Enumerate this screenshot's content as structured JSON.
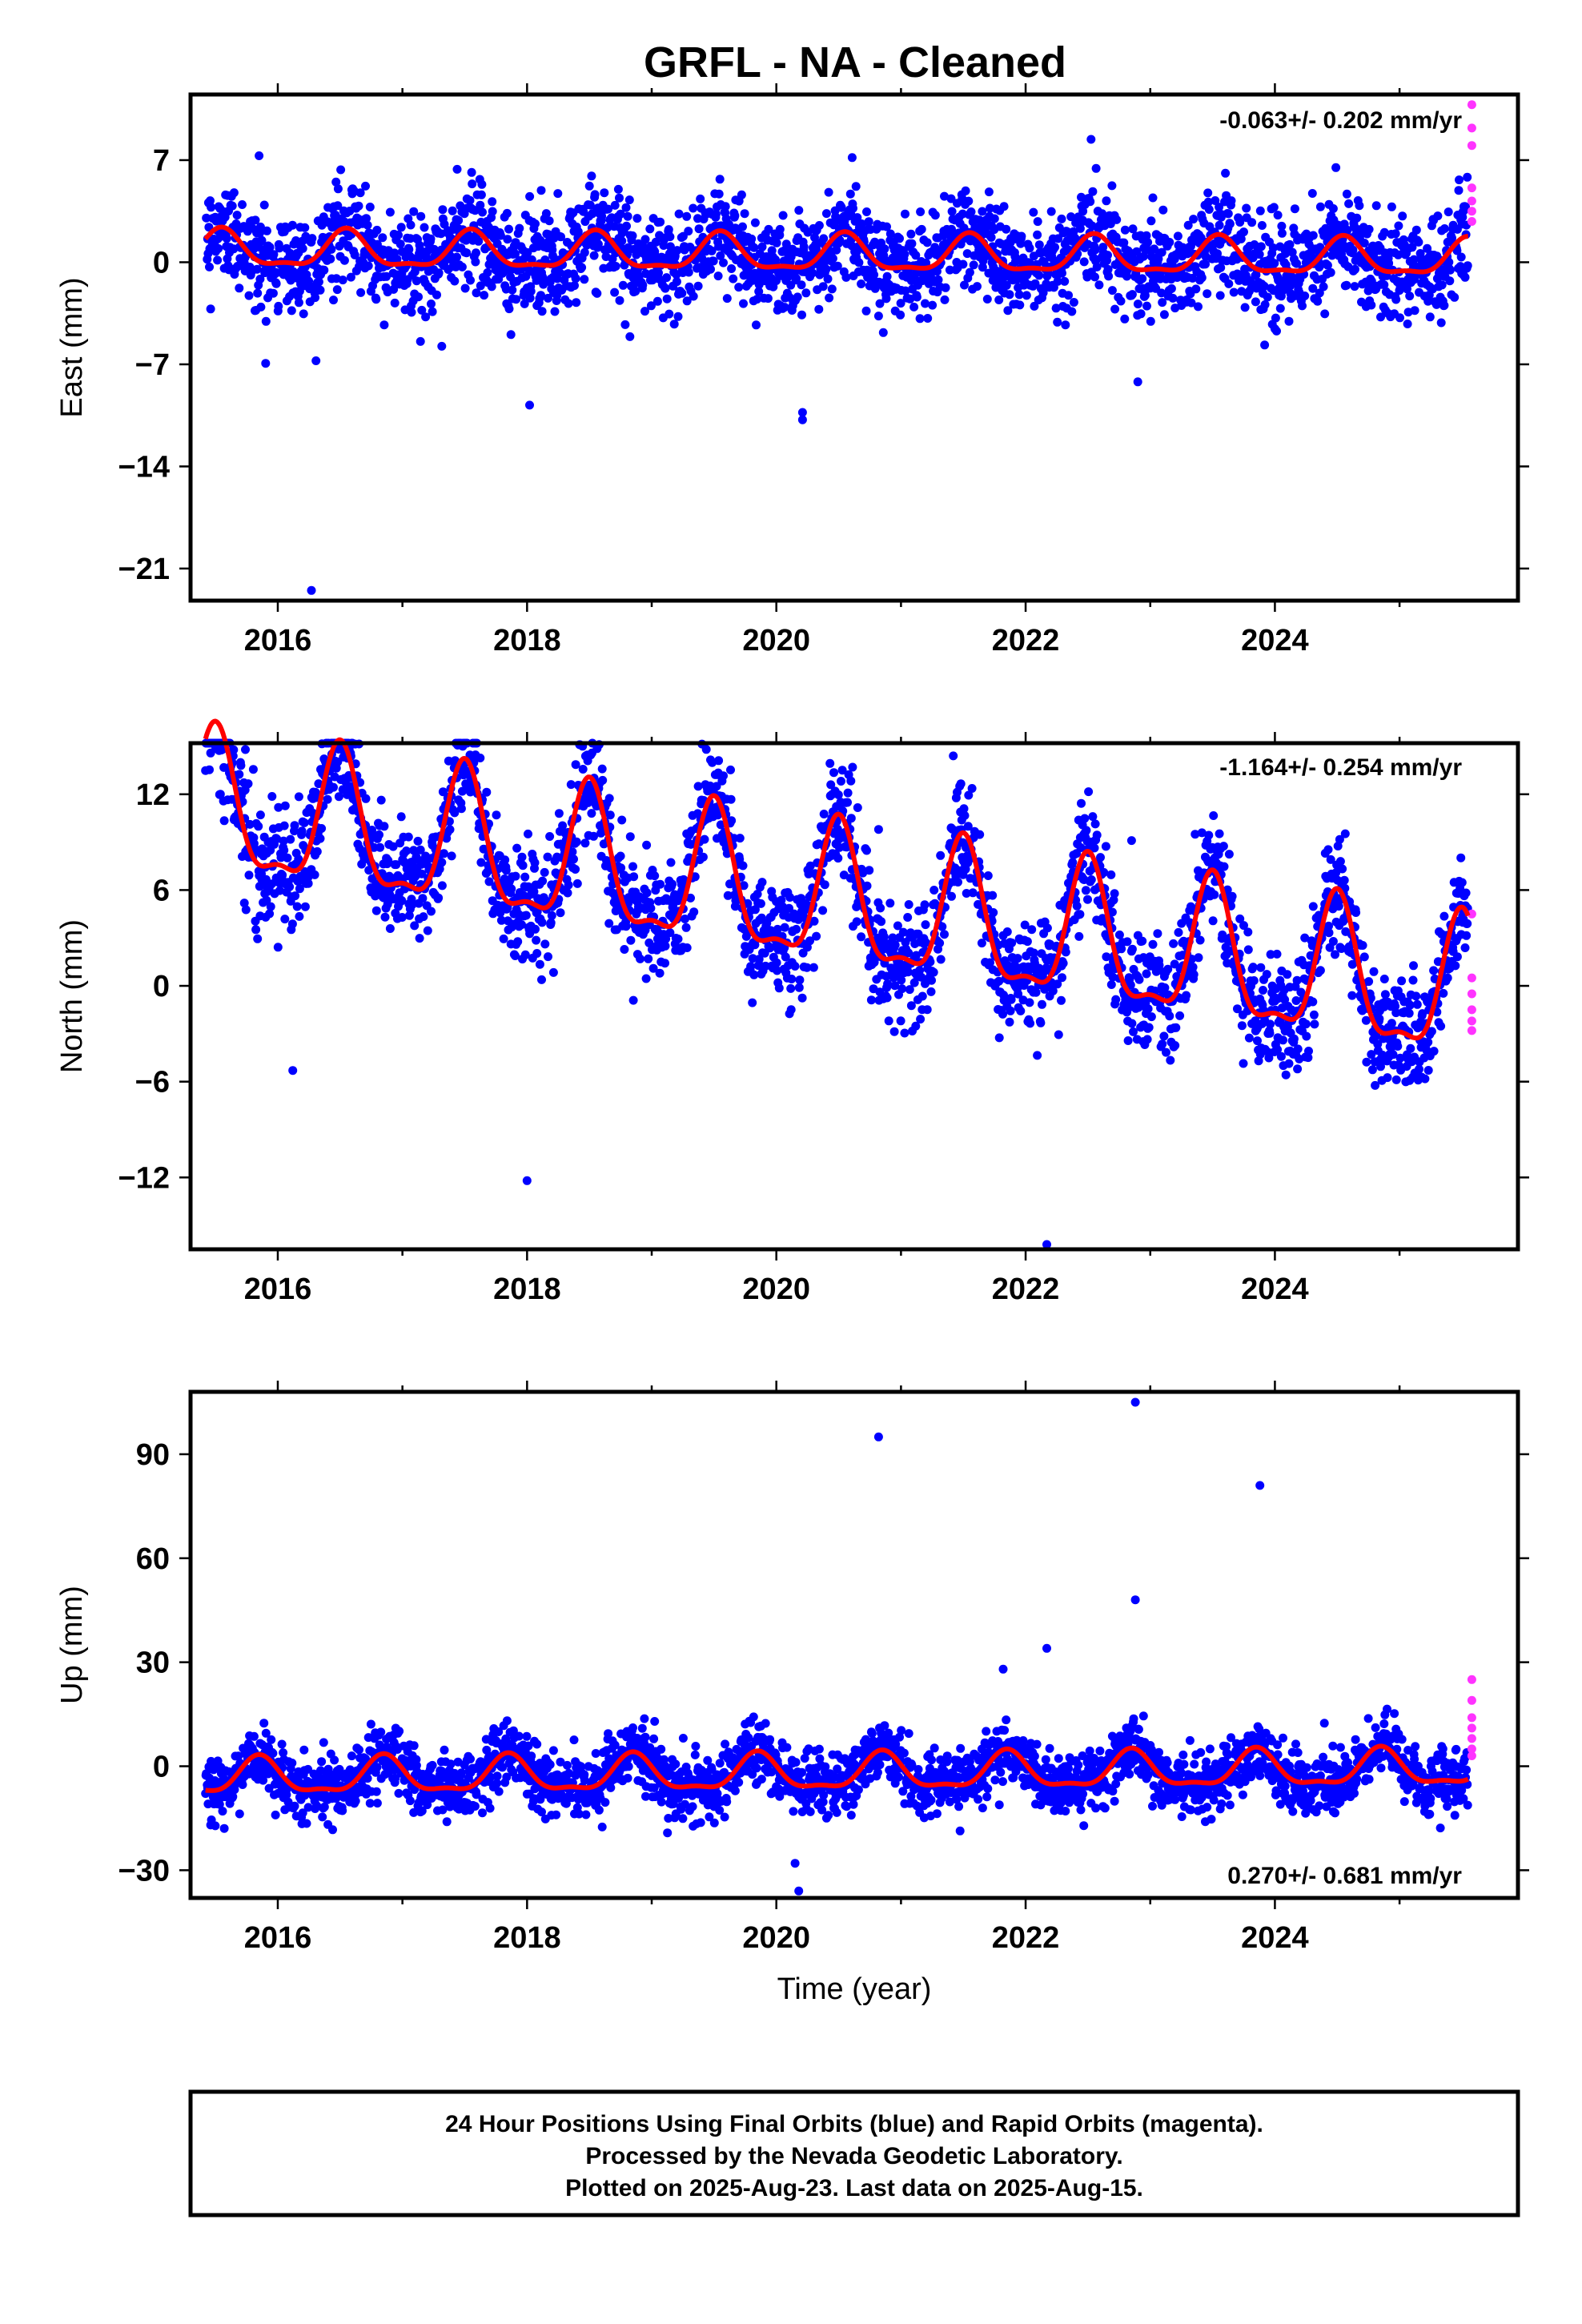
{
  "title": "GRFL  - NA - Cleaned",
  "colors": {
    "final": "#0000ff",
    "rapid": "#ff33ff",
    "model": "#ff0000",
    "frame": "#000000"
  },
  "chart_data": [
    {
      "type": "scatter",
      "component": "East",
      "ylabel": "East (mm)",
      "xlabel": "",
      "xlim": [
        2015.3,
        2025.95
      ],
      "ylim": [
        -23.2,
        11.5
      ],
      "xticks": [
        2016,
        2018,
        2020,
        2022,
        2024
      ],
      "xtick_labels": [
        "2016",
        "2018",
        "2020",
        "2022",
        "2024"
      ],
      "yticks": [
        7,
        0,
        -7,
        -14,
        -21
      ],
      "ytick_labels": [
        "7",
        "0",
        "−7",
        "−14",
        "−21"
      ],
      "rate_label": "-0.063+/- 0.202 mm/yr",
      "rate_position": "top-right",
      "trend_mm_per_yr": -0.063,
      "annual_amp_mm": 1.2,
      "annual_peak_frac": 0.55,
      "scatter_sd_mm": 1.7,
      "model_start_mm": 0.8,
      "outliers": [
        [
          2016.27,
          -22.5
        ],
        [
          2018.02,
          -9.8
        ],
        [
          2020.21,
          -10.3
        ],
        [
          2020.21,
          -10.8
        ],
        [
          2015.85,
          7.3
        ],
        [
          2022.9,
          -8.2
        ]
      ],
      "rapid_points": [
        [
          2025.58,
          10.8
        ],
        [
          2025.58,
          9.2
        ],
        [
          2025.58,
          8.0
        ],
        [
          2025.58,
          5.1
        ],
        [
          2025.58,
          4.2
        ],
        [
          2025.58,
          3.5
        ],
        [
          2025.58,
          2.8
        ]
      ],
      "grid": false
    },
    {
      "type": "scatter",
      "component": "North",
      "ylabel": "North (mm)",
      "xlabel": "",
      "xlim": [
        2015.3,
        2025.95
      ],
      "ylim": [
        -16.5,
        15.2
      ],
      "xticks": [
        2016,
        2018,
        2020,
        2022,
        2024
      ],
      "xtick_labels": [
        "2016",
        "2018",
        "2020",
        "2022",
        "2024"
      ],
      "yticks": [
        12,
        6,
        0,
        -6,
        -12
      ],
      "ytick_labels": [
        "12",
        "6",
        "0",
        "−6",
        "−12"
      ],
      "rate_label": "-1.164+/- 0.254 mm/yr",
      "rate_position": "top-right",
      "trend_mm_per_yr": -1.164,
      "annual_amp_mm": 4.2,
      "annual_peak_frac": 0.5,
      "scatter_sd_mm": 1.8,
      "model_start_mm": 11.0,
      "outliers": [
        [
          2015.74,
          14.8
        ],
        [
          2018.0,
          -12.2
        ],
        [
          2022.17,
          -16.2
        ],
        [
          2020.82,
          9.8
        ],
        [
          2022.85,
          9.1
        ],
        [
          2016.12,
          -5.3
        ]
      ],
      "rapid_points": [
        [
          2025.58,
          4.5
        ],
        [
          2025.58,
          0.5
        ],
        [
          2025.58,
          -0.5
        ],
        [
          2025.58,
          -1.5
        ],
        [
          2025.58,
          -2.2
        ],
        [
          2025.58,
          -2.8
        ]
      ],
      "grid": false
    },
    {
      "type": "scatter",
      "component": "Up",
      "ylabel": "Up (mm)",
      "xlabel": "Time (year)",
      "xlim": [
        2015.3,
        2025.95
      ],
      "ylim": [
        -38,
        108
      ],
      "xticks": [
        2016,
        2018,
        2020,
        2022,
        2024
      ],
      "xtick_labels": [
        "2016",
        "2018",
        "2020",
        "2022",
        "2024"
      ],
      "yticks": [
        90,
        60,
        30,
        0,
        -30
      ],
      "ytick_labels": [
        "90",
        "60",
        "30",
        "0",
        "−30"
      ],
      "rate_label": "0.270+/- 0.681 mm/yr",
      "rate_position": "bottom-right",
      "trend_mm_per_yr": 0.27,
      "annual_amp_mm": 5.0,
      "annual_peak_frac": 0.85,
      "scatter_sd_mm": 4.5,
      "model_start_mm": -3.5,
      "outliers": [
        [
          2020.82,
          95
        ],
        [
          2022.88,
          105
        ],
        [
          2022.88,
          48
        ],
        [
          2023.88,
          81
        ],
        [
          2022.17,
          34
        ],
        [
          2021.82,
          28
        ],
        [
          2020.18,
          -36
        ],
        [
          2020.15,
          -28
        ]
      ],
      "rapid_points": [
        [
          2025.58,
          25
        ],
        [
          2025.58,
          19
        ],
        [
          2025.58,
          14
        ],
        [
          2025.58,
          11
        ],
        [
          2025.58,
          8
        ],
        [
          2025.58,
          5
        ],
        [
          2025.58,
          3
        ]
      ],
      "grid": false
    }
  ],
  "note": {
    "lines": [
      "24 Hour Positions Using Final Orbits (blue) and Rapid Orbits (magenta).",
      "Processed by the Nevada Geodetic Laboratory.",
      "Plotted on 2025-Aug-23. Last data on 2025-Aug-15."
    ]
  }
}
